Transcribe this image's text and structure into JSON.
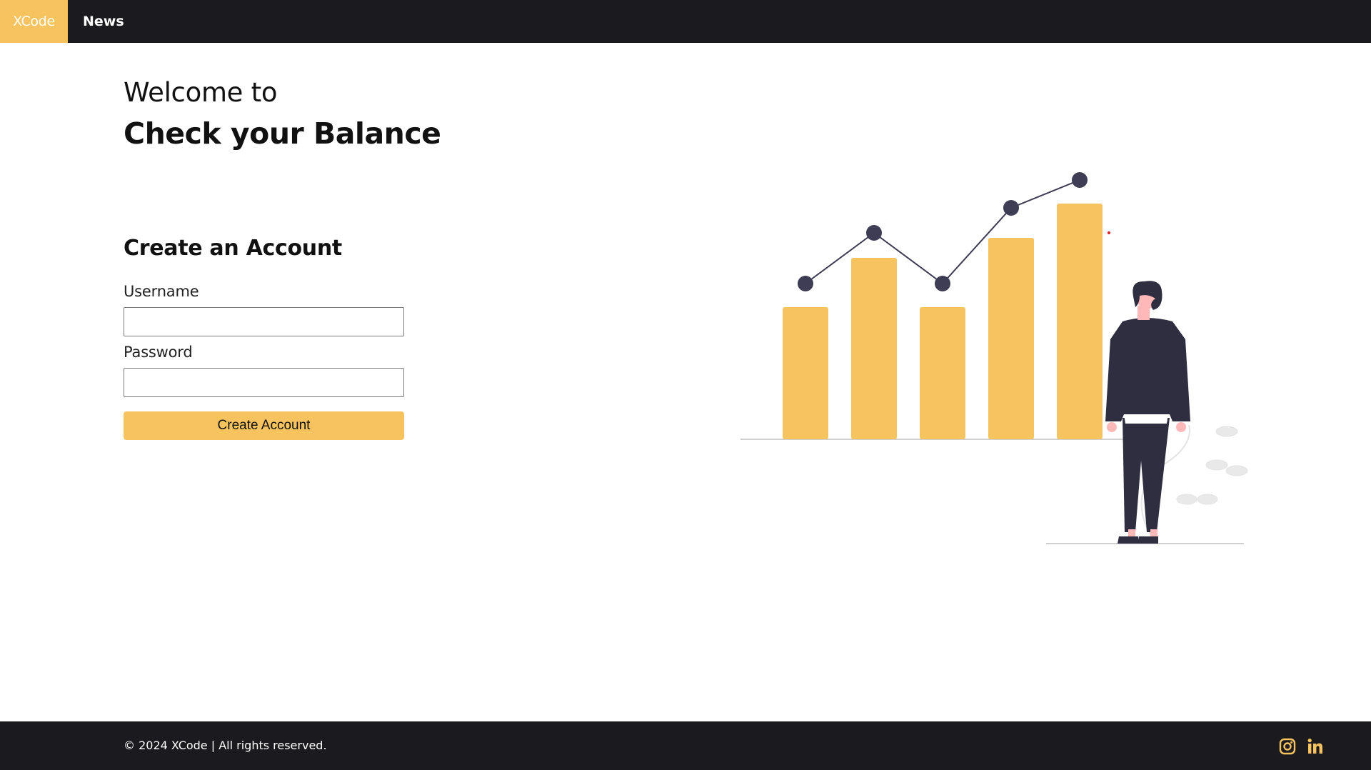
{
  "nav": {
    "brand": "XCode",
    "links": [
      "News"
    ]
  },
  "hero": {
    "welcome": "Welcome to",
    "title": "Check your Balance"
  },
  "form": {
    "title": "Create an Account",
    "username_label": "Username",
    "username_value": "",
    "password_label": "Password",
    "password_value": "",
    "submit_label": "Create Account"
  },
  "footer": {
    "copyright": "© 2024 XCode | All rights reserved.",
    "social_icons": [
      "instagram-icon",
      "linkedin-icon"
    ]
  },
  "colors": {
    "accent": "#f7c35f",
    "dark": "#1b1b1f",
    "figure": "#2f2e41"
  }
}
